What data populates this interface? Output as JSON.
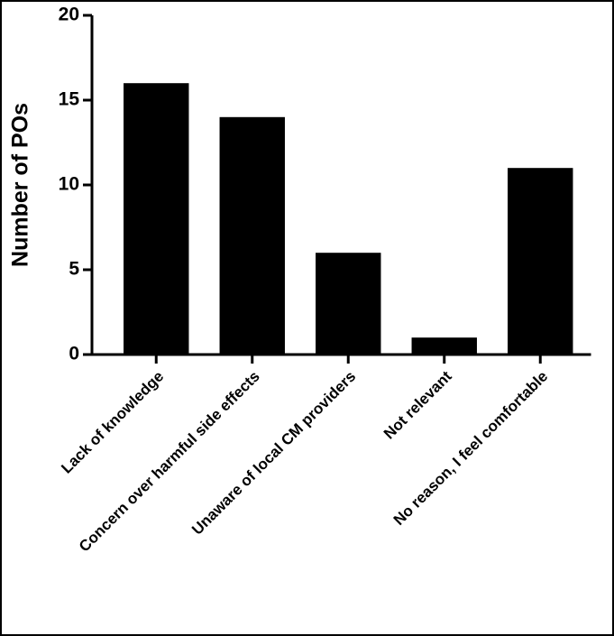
{
  "chart_data": {
    "type": "bar",
    "y_label": "Number of POs",
    "categories": [
      "Lack of knowledge",
      "Concern over harmful side effects",
      "Unaware of local CM providers",
      "Not relevant",
      "No reason, I feel comfortable"
    ],
    "values": [
      16,
      14,
      6,
      1,
      11
    ],
    "color": "#000000",
    "ylim": [
      0,
      20
    ],
    "yticks": [
      0,
      5,
      10,
      15,
      20
    ],
    "grid": false
  }
}
